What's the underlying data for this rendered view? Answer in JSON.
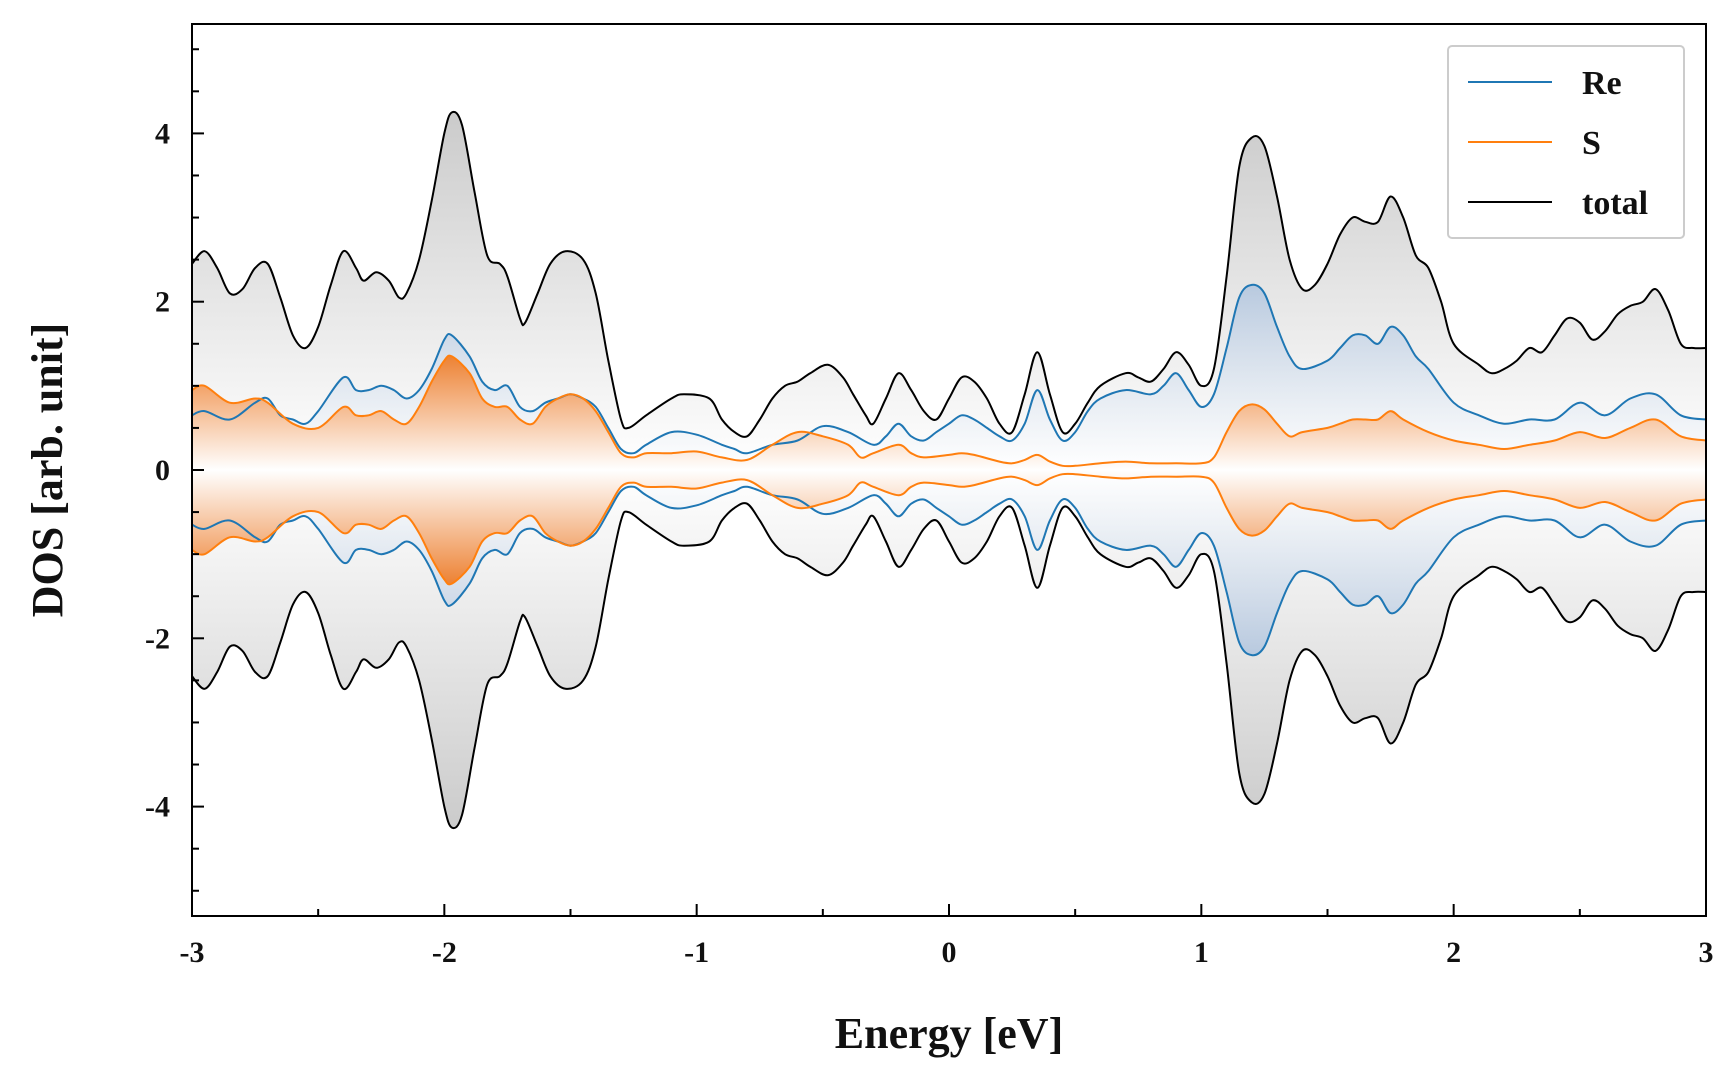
{
  "chart_data": {
    "type": "area",
    "title": "",
    "xlabel": "Energy [eV]",
    "ylabel": "DOS [arb. unit]",
    "xlim": [
      -3,
      3
    ],
    "ylim": [
      -5.3,
      5.3
    ],
    "xticks": [
      -3,
      -2,
      -1,
      0,
      1,
      2,
      3
    ],
    "xtick_labels": [
      "-3",
      "-2",
      "-1",
      "0",
      "1",
      "2",
      "3"
    ],
    "yticks": [
      -4,
      -2,
      0,
      2,
      4
    ],
    "ytick_labels": [
      "-4",
      "-2",
      "0",
      "2",
      "4"
    ],
    "grid": false,
    "mirrored": true,
    "legend_position": "top-right",
    "series": [
      {
        "name": "Re",
        "color": "#1f77b4",
        "points": [
          [
            -3.0,
            0.65
          ],
          [
            -2.95,
            0.7
          ],
          [
            -2.85,
            0.6
          ],
          [
            -2.75,
            0.8
          ],
          [
            -2.7,
            0.85
          ],
          [
            -2.65,
            0.65
          ],
          [
            -2.6,
            0.6
          ],
          [
            -2.55,
            0.55
          ],
          [
            -2.5,
            0.7
          ],
          [
            -2.4,
            1.1
          ],
          [
            -2.35,
            0.95
          ],
          [
            -2.3,
            0.95
          ],
          [
            -2.25,
            1.0
          ],
          [
            -2.2,
            0.95
          ],
          [
            -2.15,
            0.85
          ],
          [
            -2.1,
            0.95
          ],
          [
            -2.05,
            1.2
          ],
          [
            -2.0,
            1.55
          ],
          [
            -1.97,
            1.6
          ],
          [
            -1.9,
            1.35
          ],
          [
            -1.85,
            1.05
          ],
          [
            -1.8,
            0.95
          ],
          [
            -1.75,
            1.0
          ],
          [
            -1.7,
            0.75
          ],
          [
            -1.65,
            0.7
          ],
          [
            -1.6,
            0.8
          ],
          [
            -1.55,
            0.85
          ],
          [
            -1.5,
            0.9
          ],
          [
            -1.45,
            0.85
          ],
          [
            -1.4,
            0.75
          ],
          [
            -1.35,
            0.5
          ],
          [
            -1.3,
            0.25
          ],
          [
            -1.25,
            0.2
          ],
          [
            -1.2,
            0.3
          ],
          [
            -1.1,
            0.45
          ],
          [
            -1.0,
            0.42
          ],
          [
            -0.9,
            0.3
          ],
          [
            -0.85,
            0.25
          ],
          [
            -0.8,
            0.2
          ],
          [
            -0.7,
            0.3
          ],
          [
            -0.6,
            0.35
          ],
          [
            -0.5,
            0.52
          ],
          [
            -0.4,
            0.45
          ],
          [
            -0.3,
            0.3
          ],
          [
            -0.25,
            0.4
          ],
          [
            -0.2,
            0.55
          ],
          [
            -0.15,
            0.4
          ],
          [
            -0.1,
            0.35
          ],
          [
            -0.05,
            0.45
          ],
          [
            0.0,
            0.55
          ],
          [
            0.05,
            0.65
          ],
          [
            0.1,
            0.6
          ],
          [
            0.15,
            0.5
          ],
          [
            0.2,
            0.4
          ],
          [
            0.25,
            0.35
          ],
          [
            0.3,
            0.55
          ],
          [
            0.35,
            0.95
          ],
          [
            0.4,
            0.6
          ],
          [
            0.45,
            0.35
          ],
          [
            0.5,
            0.45
          ],
          [
            0.55,
            0.7
          ],
          [
            0.6,
            0.85
          ],
          [
            0.7,
            0.95
          ],
          [
            0.8,
            0.9
          ],
          [
            0.85,
            1.0
          ],
          [
            0.9,
            1.15
          ],
          [
            0.95,
            0.95
          ],
          [
            1.0,
            0.75
          ],
          [
            1.05,
            0.9
          ],
          [
            1.1,
            1.45
          ],
          [
            1.15,
            2.05
          ],
          [
            1.2,
            2.2
          ],
          [
            1.25,
            2.1
          ],
          [
            1.3,
            1.7
          ],
          [
            1.35,
            1.35
          ],
          [
            1.4,
            1.2
          ],
          [
            1.5,
            1.3
          ],
          [
            1.55,
            1.45
          ],
          [
            1.6,
            1.6
          ],
          [
            1.65,
            1.6
          ],
          [
            1.7,
            1.5
          ],
          [
            1.75,
            1.7
          ],
          [
            1.8,
            1.6
          ],
          [
            1.85,
            1.35
          ],
          [
            1.9,
            1.2
          ],
          [
            2.0,
            0.8
          ],
          [
            2.1,
            0.65
          ],
          [
            2.2,
            0.55
          ],
          [
            2.3,
            0.6
          ],
          [
            2.4,
            0.6
          ],
          [
            2.5,
            0.8
          ],
          [
            2.6,
            0.65
          ],
          [
            2.7,
            0.85
          ],
          [
            2.8,
            0.9
          ],
          [
            2.9,
            0.65
          ],
          [
            3.0,
            0.6
          ]
        ]
      },
      {
        "name": "S",
        "color": "#ff7f0e",
        "points": [
          [
            -3.0,
            0.95
          ],
          [
            -2.95,
            1.0
          ],
          [
            -2.85,
            0.8
          ],
          [
            -2.75,
            0.85
          ],
          [
            -2.7,
            0.8
          ],
          [
            -2.6,
            0.55
          ],
          [
            -2.5,
            0.5
          ],
          [
            -2.4,
            0.75
          ],
          [
            -2.35,
            0.65
          ],
          [
            -2.3,
            0.65
          ],
          [
            -2.25,
            0.7
          ],
          [
            -2.2,
            0.6
          ],
          [
            -2.15,
            0.55
          ],
          [
            -2.1,
            0.75
          ],
          [
            -2.05,
            1.05
          ],
          [
            -2.0,
            1.3
          ],
          [
            -1.97,
            1.35
          ],
          [
            -1.9,
            1.15
          ],
          [
            -1.85,
            0.85
          ],
          [
            -1.8,
            0.75
          ],
          [
            -1.75,
            0.75
          ],
          [
            -1.7,
            0.6
          ],
          [
            -1.65,
            0.55
          ],
          [
            -1.6,
            0.75
          ],
          [
            -1.55,
            0.85
          ],
          [
            -1.5,
            0.9
          ],
          [
            -1.45,
            0.85
          ],
          [
            -1.4,
            0.7
          ],
          [
            -1.35,
            0.45
          ],
          [
            -1.3,
            0.2
          ],
          [
            -1.25,
            0.15
          ],
          [
            -1.2,
            0.2
          ],
          [
            -1.1,
            0.2
          ],
          [
            -1.0,
            0.22
          ],
          [
            -0.9,
            0.15
          ],
          [
            -0.8,
            0.12
          ],
          [
            -0.7,
            0.3
          ],
          [
            -0.6,
            0.45
          ],
          [
            -0.5,
            0.4
          ],
          [
            -0.4,
            0.3
          ],
          [
            -0.35,
            0.15
          ],
          [
            -0.3,
            0.2
          ],
          [
            -0.2,
            0.3
          ],
          [
            -0.15,
            0.2
          ],
          [
            -0.1,
            0.15
          ],
          [
            0.0,
            0.18
          ],
          [
            0.05,
            0.2
          ],
          [
            0.1,
            0.18
          ],
          [
            0.2,
            0.1
          ],
          [
            0.25,
            0.08
          ],
          [
            0.3,
            0.12
          ],
          [
            0.35,
            0.18
          ],
          [
            0.4,
            0.1
          ],
          [
            0.45,
            0.05
          ],
          [
            0.5,
            0.05
          ],
          [
            0.6,
            0.08
          ],
          [
            0.7,
            0.1
          ],
          [
            0.8,
            0.08
          ],
          [
            0.9,
            0.08
          ],
          [
            1.0,
            0.08
          ],
          [
            1.05,
            0.15
          ],
          [
            1.1,
            0.45
          ],
          [
            1.15,
            0.7
          ],
          [
            1.2,
            0.78
          ],
          [
            1.25,
            0.72
          ],
          [
            1.3,
            0.55
          ],
          [
            1.35,
            0.4
          ],
          [
            1.4,
            0.45
          ],
          [
            1.5,
            0.5
          ],
          [
            1.55,
            0.55
          ],
          [
            1.6,
            0.6
          ],
          [
            1.65,
            0.6
          ],
          [
            1.7,
            0.6
          ],
          [
            1.75,
            0.7
          ],
          [
            1.8,
            0.6
          ],
          [
            1.9,
            0.45
          ],
          [
            2.0,
            0.35
          ],
          [
            2.1,
            0.3
          ],
          [
            2.2,
            0.25
          ],
          [
            2.3,
            0.3
          ],
          [
            2.4,
            0.35
          ],
          [
            2.5,
            0.45
          ],
          [
            2.6,
            0.38
          ],
          [
            2.7,
            0.5
          ],
          [
            2.8,
            0.6
          ],
          [
            2.9,
            0.4
          ],
          [
            3.0,
            0.35
          ]
        ]
      },
      {
        "name": "total",
        "color": "#000000",
        "points": [
          [
            -3.0,
            2.45
          ],
          [
            -2.95,
            2.6
          ],
          [
            -2.9,
            2.4
          ],
          [
            -2.85,
            2.1
          ],
          [
            -2.8,
            2.15
          ],
          [
            -2.75,
            2.4
          ],
          [
            -2.7,
            2.45
          ],
          [
            -2.65,
            2.05
          ],
          [
            -2.6,
            1.6
          ],
          [
            -2.55,
            1.45
          ],
          [
            -2.5,
            1.7
          ],
          [
            -2.45,
            2.2
          ],
          [
            -2.4,
            2.6
          ],
          [
            -2.35,
            2.4
          ],
          [
            -2.32,
            2.25
          ],
          [
            -2.27,
            2.35
          ],
          [
            -2.22,
            2.25
          ],
          [
            -2.18,
            2.05
          ],
          [
            -2.15,
            2.1
          ],
          [
            -2.1,
            2.5
          ],
          [
            -2.05,
            3.2
          ],
          [
            -2.0,
            4.0
          ],
          [
            -1.97,
            4.25
          ],
          [
            -1.93,
            4.1
          ],
          [
            -1.88,
            3.3
          ],
          [
            -1.83,
            2.55
          ],
          [
            -1.78,
            2.45
          ],
          [
            -1.75,
            2.3
          ],
          [
            -1.7,
            1.8
          ],
          [
            -1.68,
            1.75
          ],
          [
            -1.63,
            2.1
          ],
          [
            -1.58,
            2.45
          ],
          [
            -1.52,
            2.6
          ],
          [
            -1.45,
            2.5
          ],
          [
            -1.4,
            2.1
          ],
          [
            -1.35,
            1.3
          ],
          [
            -1.3,
            0.6
          ],
          [
            -1.27,
            0.5
          ],
          [
            -1.2,
            0.65
          ],
          [
            -1.1,
            0.85
          ],
          [
            -1.05,
            0.9
          ],
          [
            -0.95,
            0.85
          ],
          [
            -0.9,
            0.6
          ],
          [
            -0.85,
            0.45
          ],
          [
            -0.8,
            0.4
          ],
          [
            -0.75,
            0.6
          ],
          [
            -0.7,
            0.85
          ],
          [
            -0.65,
            1.0
          ],
          [
            -0.6,
            1.05
          ],
          [
            -0.55,
            1.15
          ],
          [
            -0.48,
            1.25
          ],
          [
            -0.42,
            1.1
          ],
          [
            -0.38,
            0.9
          ],
          [
            -0.33,
            0.65
          ],
          [
            -0.3,
            0.55
          ],
          [
            -0.25,
            0.85
          ],
          [
            -0.2,
            1.15
          ],
          [
            -0.15,
            0.95
          ],
          [
            -0.1,
            0.7
          ],
          [
            -0.05,
            0.6
          ],
          [
            0.0,
            0.85
          ],
          [
            0.05,
            1.1
          ],
          [
            0.1,
            1.05
          ],
          [
            0.15,
            0.85
          ],
          [
            0.2,
            0.55
          ],
          [
            0.25,
            0.45
          ],
          [
            0.3,
            0.9
          ],
          [
            0.35,
            1.4
          ],
          [
            0.4,
            0.9
          ],
          [
            0.45,
            0.45
          ],
          [
            0.5,
            0.55
          ],
          [
            0.55,
            0.8
          ],
          [
            0.6,
            1.0
          ],
          [
            0.7,
            1.15
          ],
          [
            0.75,
            1.1
          ],
          [
            0.8,
            1.05
          ],
          [
            0.85,
            1.2
          ],
          [
            0.9,
            1.4
          ],
          [
            0.95,
            1.25
          ],
          [
            1.0,
            1.0
          ],
          [
            1.05,
            1.2
          ],
          [
            1.1,
            2.3
          ],
          [
            1.15,
            3.6
          ],
          [
            1.2,
            3.95
          ],
          [
            1.25,
            3.85
          ],
          [
            1.3,
            3.25
          ],
          [
            1.35,
            2.5
          ],
          [
            1.4,
            2.15
          ],
          [
            1.45,
            2.2
          ],
          [
            1.5,
            2.45
          ],
          [
            1.55,
            2.8
          ],
          [
            1.6,
            3.0
          ],
          [
            1.65,
            2.95
          ],
          [
            1.7,
            2.95
          ],
          [
            1.75,
            3.25
          ],
          [
            1.8,
            3.0
          ],
          [
            1.85,
            2.55
          ],
          [
            1.9,
            2.4
          ],
          [
            1.95,
            2.0
          ],
          [
            2.0,
            1.5
          ],
          [
            2.1,
            1.25
          ],
          [
            2.15,
            1.15
          ],
          [
            2.2,
            1.2
          ],
          [
            2.25,
            1.3
          ],
          [
            2.3,
            1.45
          ],
          [
            2.35,
            1.4
          ],
          [
            2.4,
            1.6
          ],
          [
            2.45,
            1.8
          ],
          [
            2.5,
            1.75
          ],
          [
            2.55,
            1.55
          ],
          [
            2.6,
            1.65
          ],
          [
            2.65,
            1.85
          ],
          [
            2.7,
            1.95
          ],
          [
            2.75,
            2.0
          ],
          [
            2.8,
            2.15
          ],
          [
            2.85,
            1.9
          ],
          [
            2.9,
            1.5
          ],
          [
            2.95,
            1.45
          ],
          [
            3.0,
            1.45
          ]
        ]
      }
    ]
  }
}
